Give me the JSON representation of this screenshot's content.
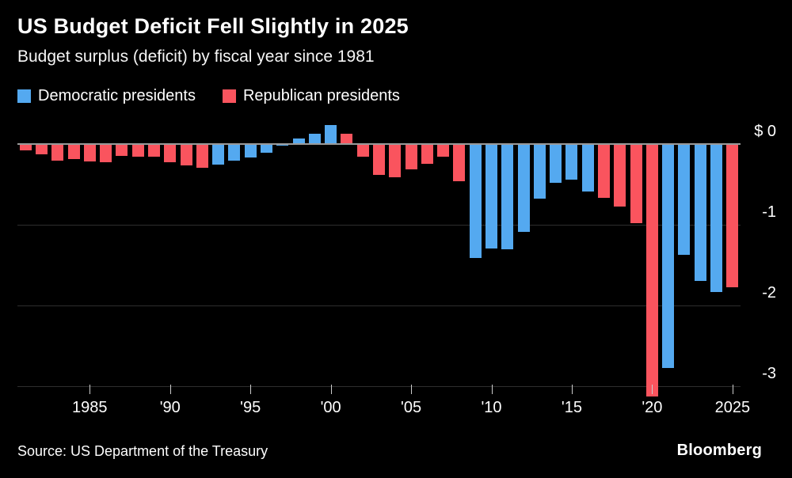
{
  "header": {
    "title": "US Budget Deficit Fell Slightly in 2025",
    "subtitle": "Budget surplus (deficit) by fiscal year since 1981"
  },
  "legend": {
    "items": [
      {
        "label": "Democratic presidents",
        "party": "D"
      },
      {
        "label": "Republican presidents",
        "party": "R"
      }
    ]
  },
  "source": {
    "text": "Source: US Department of the Treasury"
  },
  "branding": {
    "logo": "Bloomberg"
  },
  "chart_data": {
    "type": "bar",
    "unit": "trillions of US dollars",
    "title": "US Budget Deficit Fell Slightly in 2025",
    "subtitle": "Budget surplus (deficit) by fiscal year since 1981",
    "ylim": [
      -3.3,
      0.3
    ],
    "colors": {
      "D": "#54a9f0",
      "R": "#fa545e"
    },
    "y_axis": {
      "ticks": [
        {
          "value": 0,
          "label": "$ 0"
        },
        {
          "value": -1,
          "label": "-1"
        },
        {
          "value": -2,
          "label": "-2"
        },
        {
          "value": -3,
          "label": "-3"
        }
      ]
    },
    "x_axis": {
      "ticks": [
        {
          "year": 1985,
          "label": "1985"
        },
        {
          "year": 1990,
          "label": "'90"
        },
        {
          "year": 1995,
          "label": "'95"
        },
        {
          "year": 2000,
          "label": "'00"
        },
        {
          "year": 2005,
          "label": "'05"
        },
        {
          "year": 2010,
          "label": "'10"
        },
        {
          "year": 2015,
          "label": "'15"
        },
        {
          "year": 2020,
          "label": "'20"
        },
        {
          "year": 2025,
          "label": "2025"
        }
      ]
    },
    "points": [
      {
        "year": 1981,
        "value": -0.079,
        "party": "R"
      },
      {
        "year": 1982,
        "value": -0.128,
        "party": "R"
      },
      {
        "year": 1983,
        "value": -0.208,
        "party": "R"
      },
      {
        "year": 1984,
        "value": -0.185,
        "party": "R"
      },
      {
        "year": 1985,
        "value": -0.212,
        "party": "R"
      },
      {
        "year": 1986,
        "value": -0.221,
        "party": "R"
      },
      {
        "year": 1987,
        "value": -0.15,
        "party": "R"
      },
      {
        "year": 1988,
        "value": -0.155,
        "party": "R"
      },
      {
        "year": 1989,
        "value": -0.153,
        "party": "R"
      },
      {
        "year": 1990,
        "value": -0.221,
        "party": "R"
      },
      {
        "year": 1991,
        "value": -0.269,
        "party": "R"
      },
      {
        "year": 1992,
        "value": -0.29,
        "party": "R"
      },
      {
        "year": 1993,
        "value": -0.255,
        "party": "D"
      },
      {
        "year": 1994,
        "value": -0.203,
        "party": "D"
      },
      {
        "year": 1995,
        "value": -0.164,
        "party": "D"
      },
      {
        "year": 1996,
        "value": -0.107,
        "party": "D"
      },
      {
        "year": 1997,
        "value": -0.022,
        "party": "D"
      },
      {
        "year": 1998,
        "value": 0.069,
        "party": "D"
      },
      {
        "year": 1999,
        "value": 0.126,
        "party": "D"
      },
      {
        "year": 2000,
        "value": 0.236,
        "party": "D"
      },
      {
        "year": 2001,
        "value": 0.128,
        "party": "R"
      },
      {
        "year": 2002,
        "value": -0.158,
        "party": "R"
      },
      {
        "year": 2003,
        "value": -0.378,
        "party": "R"
      },
      {
        "year": 2004,
        "value": -0.413,
        "party": "R"
      },
      {
        "year": 2005,
        "value": -0.318,
        "party": "R"
      },
      {
        "year": 2006,
        "value": -0.248,
        "party": "R"
      },
      {
        "year": 2007,
        "value": -0.161,
        "party": "R"
      },
      {
        "year": 2008,
        "value": -0.459,
        "party": "R"
      },
      {
        "year": 2009,
        "value": -1.413,
        "party": "D"
      },
      {
        "year": 2010,
        "value": -1.294,
        "party": "D"
      },
      {
        "year": 2011,
        "value": -1.3,
        "party": "D"
      },
      {
        "year": 2012,
        "value": -1.087,
        "party": "D"
      },
      {
        "year": 2013,
        "value": -0.68,
        "party": "D"
      },
      {
        "year": 2014,
        "value": -0.485,
        "party": "D"
      },
      {
        "year": 2015,
        "value": -0.442,
        "party": "D"
      },
      {
        "year": 2016,
        "value": -0.585,
        "party": "D"
      },
      {
        "year": 2017,
        "value": -0.665,
        "party": "R"
      },
      {
        "year": 2018,
        "value": -0.779,
        "party": "R"
      },
      {
        "year": 2019,
        "value": -0.984,
        "party": "R"
      },
      {
        "year": 2020,
        "value": -3.132,
        "party": "R"
      },
      {
        "year": 2021,
        "value": -2.772,
        "party": "D"
      },
      {
        "year": 2022,
        "value": -1.375,
        "party": "D"
      },
      {
        "year": 2023,
        "value": -1.695,
        "party": "D"
      },
      {
        "year": 2024,
        "value": -1.833,
        "party": "D"
      },
      {
        "year": 2025,
        "value": -1.775,
        "party": "R"
      }
    ]
  }
}
